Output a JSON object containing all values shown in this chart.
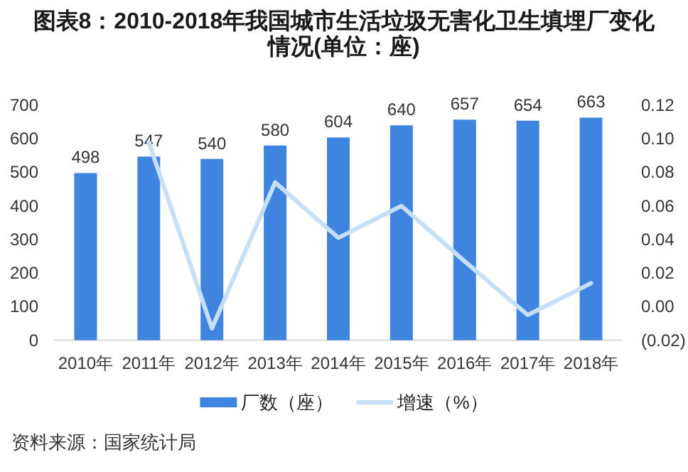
{
  "chart_data": {
    "type": "bar",
    "title": "图表8：2010-2018年我国城市生活垃圾无害化卫生填埋厂变化情况(单位：座)",
    "categories": [
      "2010年",
      "2011年",
      "2012年",
      "2013年",
      "2014年",
      "2015年",
      "2016年",
      "2017年",
      "2018年"
    ],
    "series": [
      {
        "name": "厂数（座）",
        "color": "#3f85df",
        "values": [
          498,
          547,
          540,
          580,
          604,
          640,
          657,
          654,
          663
        ],
        "value_labels": [
          "498",
          "547",
          "540",
          "580",
          "604",
          "640",
          "657",
          "654",
          "663"
        ]
      },
      {
        "name": "增速（%）",
        "type": "line",
        "axis": "y2",
        "color": "#c6dff8",
        "values": [
          null,
          0.098,
          -0.013,
          0.074,
          0.041,
          0.06,
          0.027,
          -0.005,
          0.014
        ]
      }
    ],
    "ylim": [
      0,
      700
    ],
    "yticks": [
      0,
      100,
      200,
      300,
      400,
      500,
      600,
      700
    ],
    "y2lim": [
      -0.02,
      0.12
    ],
    "y2ticks": [
      {
        "value": -0.02,
        "label": "(0.02)"
      },
      {
        "value": 0,
        "label": "0.00"
      },
      {
        "value": 0.02,
        "label": "0.02"
      },
      {
        "value": 0.04,
        "label": "0.04"
      },
      {
        "value": 0.06,
        "label": "0.06"
      },
      {
        "value": 0.08,
        "label": "0.08"
      },
      {
        "value": 0.1,
        "label": "0.10"
      },
      {
        "value": 0.12,
        "label": "0.12"
      }
    ],
    "legend": "bottom",
    "annotations": [
      "资料来源：国家统计局"
    ]
  }
}
